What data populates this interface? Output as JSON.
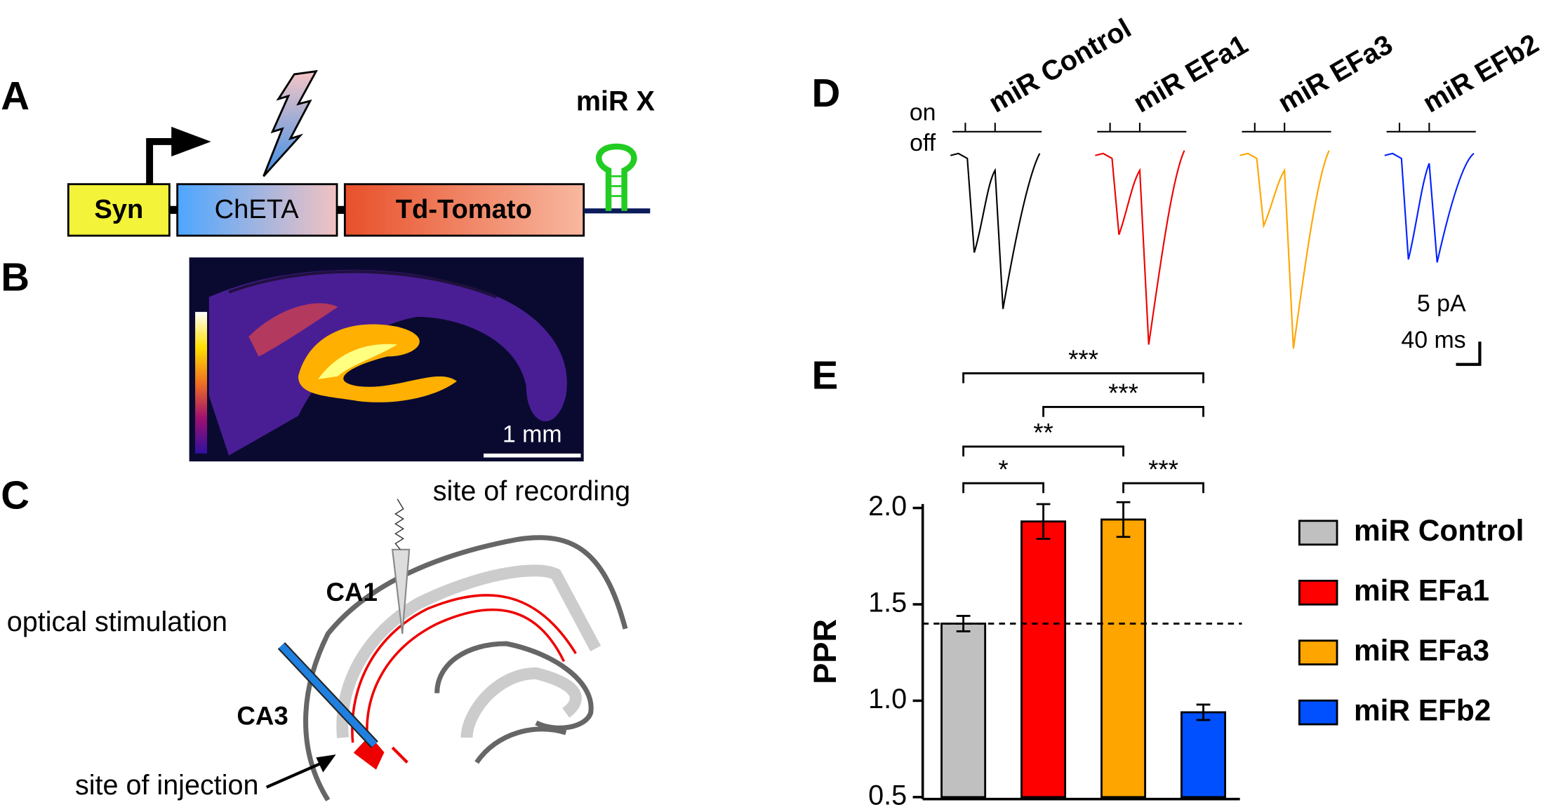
{
  "panels": {
    "A": {
      "label": "A",
      "boxes": [
        "Syn",
        "ChETA",
        "Td-Tomato"
      ],
      "mirna": "miR X"
    },
    "B": {
      "label": "B",
      "scale_bar": "1 mm"
    },
    "C": {
      "label": "C",
      "labels": [
        "site of recording",
        "CA1",
        "optical stimulation",
        "CA3",
        "site of injection"
      ]
    },
    "D": {
      "label": "D",
      "stim_on": "on",
      "stim_off": "off",
      "scale_y": "5 pA",
      "scale_x": "40 ms"
    },
    "E": {
      "label": "E"
    }
  },
  "chart_data": {
    "type": "bar",
    "ylabel": "PPR",
    "categories": [
      "miR Control",
      "miR EFa1",
      "miR EFa3",
      "miR EFb2"
    ],
    "values": [
      1.4,
      1.93,
      1.94,
      0.94
    ],
    "errors": [
      0.04,
      0.09,
      0.09,
      0.04
    ],
    "colors": [
      "#c0c0c0",
      "#ff0000",
      "#ffa500",
      "#0050ff"
    ],
    "ylim": [
      0.5,
      2.0
    ],
    "yticks": [
      0.5,
      {
        "value": 1,
        "label": "1.0"
      },
      1.5,
      {
        "value": 2,
        "label": "2.0"
      }
    ],
    "reference_line": 1.4,
    "significance": [
      {
        "from": 0,
        "to": 3,
        "label": "***"
      },
      {
        "from": 1,
        "to": 3,
        "label": "***"
      },
      {
        "from": 0,
        "to": 2,
        "label": "**"
      },
      {
        "from": 0,
        "to": 1,
        "label": "*"
      },
      {
        "from": 2,
        "to": 3,
        "label": "***"
      }
    ]
  }
}
